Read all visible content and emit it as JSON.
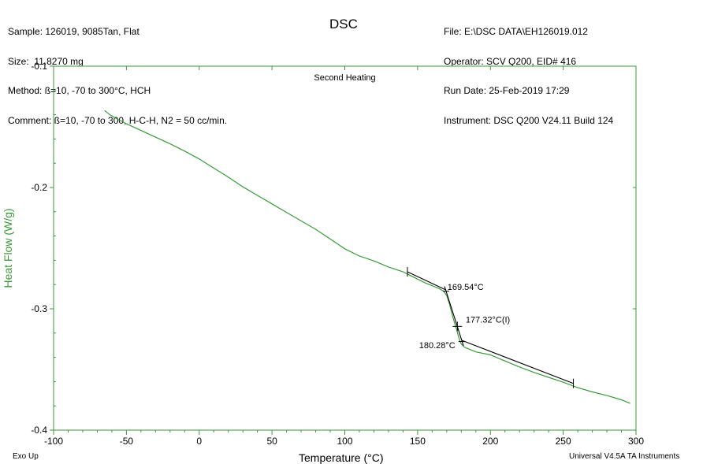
{
  "header": {
    "left": [
      "Sample: 126019, 9085Tan, Flat",
      "Size:  11.8270 mg",
      "Method: ß=10, -70 to 300°C, HCH",
      "Comment: ß=10, -70 to 300, H-C-H, N2 = 50 cc/min."
    ],
    "right": [
      "File: E:\\DSC DATA\\EH126019.012",
      "Operator: SCV Q200, EID# 416",
      "Run Date: 25-Feb-2019 17:29",
      "Instrument: DSC Q200 V24.11 Build 124"
    ]
  },
  "footer": {
    "left": "Exo Up",
    "right": "Universal V4.5A TA Instruments"
  },
  "colors": {
    "curve": "#3a9a3a",
    "axis": "#3a9a3a",
    "analysis": "#000000"
  },
  "chart_data": {
    "type": "line",
    "title": "DSC",
    "subtitle": "Second Heating",
    "xlabel": "Temperature (°C)",
    "ylabel": "Heat Flow (W/g)",
    "xlim": [
      -100,
      300
    ],
    "ylim": [
      -0.4,
      -0.1
    ],
    "xticks": [
      -100,
      -50,
      0,
      50,
      100,
      150,
      200,
      250,
      300
    ],
    "xtick_labels": [
      "-100",
      "-50",
      "0",
      "50",
      "100",
      "150",
      "200",
      "250",
      "300"
    ],
    "yticks": [
      -0.4,
      -0.3,
      -0.2,
      -0.1
    ],
    "ytick_labels": [
      "-0.4",
      "-0.3",
      "-0.2",
      "-0.1"
    ],
    "series": [
      {
        "x": [
          -65,
          -62,
          -58,
          -50,
          -40,
          -30,
          -20,
          -10,
          0,
          10,
          20,
          30,
          40,
          50,
          60,
          70,
          80,
          90,
          100,
          110,
          120,
          130,
          140,
          145,
          150,
          155,
          160,
          165,
          168,
          170,
          172,
          174,
          176,
          177,
          178,
          179,
          180,
          182,
          185,
          190,
          200,
          210,
          220,
          230,
          240,
          250,
          260,
          270,
          280,
          290,
          296
        ],
        "y": [
          -0.1365,
          -0.1395,
          -0.1425,
          -0.1475,
          -0.153,
          -0.1585,
          -0.164,
          -0.17,
          -0.1765,
          -0.184,
          -0.1915,
          -0.1995,
          -0.2065,
          -0.2135,
          -0.2205,
          -0.2275,
          -0.2345,
          -0.2425,
          -0.2505,
          -0.2565,
          -0.2605,
          -0.2655,
          -0.2695,
          -0.2725,
          -0.2755,
          -0.2785,
          -0.281,
          -0.2835,
          -0.2855,
          -0.289,
          -0.2965,
          -0.306,
          -0.314,
          -0.318,
          -0.3225,
          -0.3265,
          -0.329,
          -0.3315,
          -0.333,
          -0.3355,
          -0.338,
          -0.343,
          -0.348,
          -0.3525,
          -0.3565,
          -0.3605,
          -0.365,
          -0.3685,
          -0.3715,
          -0.375,
          -0.378
        ]
      }
    ],
    "analysis": {
      "baseline_before": [
        [
          143,
          -0.2695
        ],
        [
          169.54,
          -0.2845
        ]
      ],
      "inflection_segment": [
        [
          168.5,
          -0.2815
        ],
        [
          181.5,
          -0.3305
        ]
      ],
      "baseline_after": [
        [
          180.28,
          -0.326
        ],
        [
          257,
          -0.3615
        ]
      ],
      "markers": [
        {
          "x": 143,
          "y": -0.2695,
          "type": "limit"
        },
        {
          "x": 169.54,
          "y": -0.2855,
          "type": "onset"
        },
        {
          "x": 177.32,
          "y": -0.3145,
          "type": "inflection"
        },
        {
          "x": 180.28,
          "y": -0.327,
          "type": "end"
        },
        {
          "x": 257,
          "y": -0.3615,
          "type": "limit"
        }
      ],
      "labels": [
        {
          "text": "169.54°C",
          "x": 170.5,
          "y": -0.2845
        },
        {
          "text": "177.32°C(I)",
          "x": 183,
          "y": -0.3115
        },
        {
          "text": "180.28°C",
          "x": 151,
          "y": -0.3325
        }
      ]
    }
  }
}
